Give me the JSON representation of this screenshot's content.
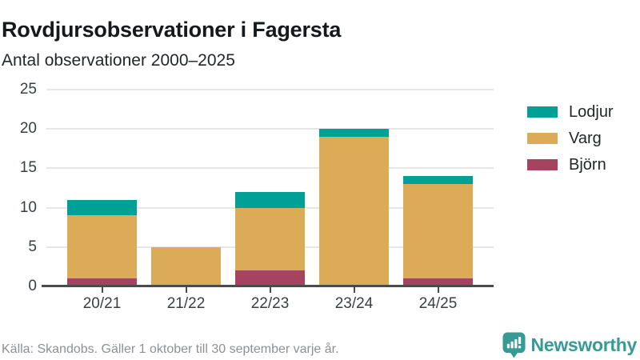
{
  "header": {
    "title": "Rovdjursobservationer i Fagersta",
    "subtitle": "Antal observationer 2000–2025"
  },
  "chart_data": {
    "type": "bar",
    "stacked": true,
    "title": "Rovdjursobservationer i Fagersta",
    "subtitle": "Antal observationer 2000–2025",
    "categories": [
      "20/21",
      "21/22",
      "22/23",
      "23/24",
      "24/25"
    ],
    "series": [
      {
        "name": "Björn",
        "color": "#a64360",
        "values": [
          1,
          0,
          2,
          0,
          1
        ]
      },
      {
        "name": "Varg",
        "color": "#dcab58",
        "values": [
          8,
          5,
          8,
          19,
          12
        ]
      },
      {
        "name": "Lodjur",
        "color": "#00a096",
        "values": [
          2,
          0,
          2,
          1,
          1
        ]
      }
    ],
    "totals": [
      11,
      5,
      12,
      20,
      14
    ],
    "legend_order": [
      "Lodjur",
      "Varg",
      "Björn"
    ],
    "legend_position": "right",
    "ylim": [
      0,
      25
    ],
    "yticks": [
      0,
      5,
      10,
      15,
      20,
      25
    ],
    "grid": true,
    "xlabel": "",
    "ylabel": ""
  },
  "footer": {
    "source": "Källa: Skandobs. Gäller 1 oktober till 30 september varje år.",
    "brand": "Newsworthy"
  },
  "colors": {
    "teal": "#00a096",
    "gold": "#dcab58",
    "maroon": "#a64360",
    "brand_teal": "#379a94",
    "axis": "#4a4b4d",
    "grid": "#e5e6e8",
    "text": "#23272b",
    "muted": "#8e9097"
  }
}
